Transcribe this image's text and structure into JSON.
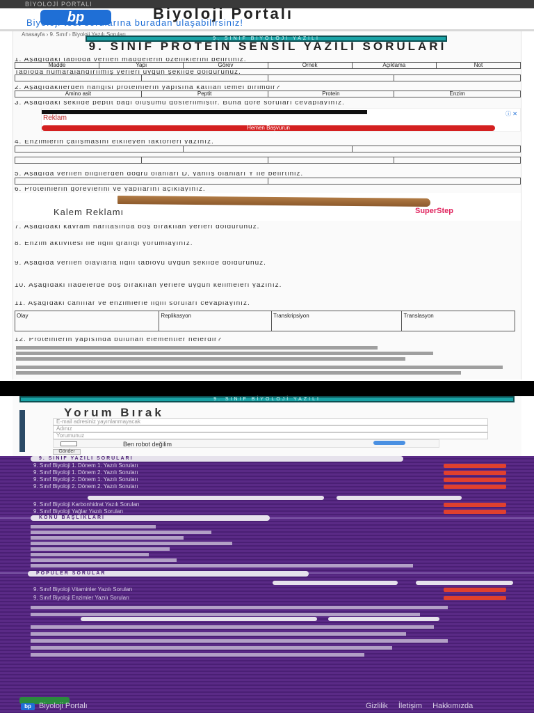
{
  "topbar": {
    "text": "BİYOLOJİ PORTALI"
  },
  "header": {
    "logo": "bp",
    "title": "Biyoloji Portalı",
    "subtitle": "Biyoloji test sorularına buradan ulaşabilirsiniz!"
  },
  "breadcrumb": "Anasayfa › 9. Sınıf › Biyoloji Yazılı Soruları",
  "bars": {
    "top": "9. SINIF BİYOLOJİ YAZILI",
    "comment": "9. SINIF BİYOLOJİ YAZILI"
  },
  "page": {
    "title": "9. SINIF PROTEİN SENSİL YAZILI SORULARI"
  },
  "questions": [
    "1. Aşağıdaki tabloda verilen maddelerin özelliklerini belirtiniz.",
    "Tabloda numaralandırılmış yerleri uygun şekilde doldurunuz.",
    "2. Aşağıdakilerden hangisi proteinlerin yapısına katılan temel birimdir?",
    "3. Aşağıdaki şekilde peptit bağı oluşumu gösterilmiştir. Buna göre soruları cevaplayınız.",
    "4. Enzimlerin çalışmasını etkileyen faktörleri yazınız.",
    "5. Aşağıda verilen bilgilerden doğru olanları D, yanlış olanları Y ile belirtiniz.",
    "6. Proteinlerin görevlerini ve yapılarını açıklayınız.",
    "7. Aşağıdaki kavram haritasında boş bırakılan yerleri doldurunuz.",
    "8. Enzim aktivitesi ile ilgili grafiği yorumlayınız.",
    "9. Aşağıda verilen olaylarla ilgili tabloyu uygun şekilde doldurunuz.",
    "10. Aşağıdaki ifadelerde boş bırakılan yerlere uygun kelimeleri yazınız.",
    "11. Aşağıdaki canlılar ve enzimlerle ilgili soruları cevaplayınız.",
    "12. Proteinlerin yapısında bulunan elementler nelerdir?"
  ],
  "table1": [
    "Madde",
    "Yapı",
    "Görev",
    "Örnek",
    "Açıklama",
    "Not"
  ],
  "table2": [
    "Amino asit",
    "Peptit",
    "Protein",
    "Enzim"
  ],
  "ad": {
    "text": "Reklam",
    "button": "Hemen Başvurun",
    "info": "ⓘ ✕"
  },
  "pen_ad": {
    "label": "Kalem Reklamı",
    "brand": "SuperStep"
  },
  "table5": [
    "Olay",
    "Replikasyon",
    "Transkripsiyon",
    "Translasyon"
  ],
  "comment": {
    "title": "Yorum Bırak",
    "email_placeholder": "E-mail adresiniz yayınlanmayacak",
    "name_placeholder": "Adınız",
    "comment_placeholder": "Yorumunuz",
    "captcha": "Ben robot değilim",
    "submit": "Gönder"
  },
  "sections": {
    "s1": "9. SINIF YAZILI SORULARI",
    "s2": "KONU BAŞLIKLARI",
    "s3": "POPÜLER SORULAR"
  },
  "purple_rows": [
    "9. Sınıf Biyoloji 1. Dönem 1. Yazılı Soruları",
    "9. Sınıf Biyoloji 1. Dönem 2. Yazılı Soruları",
    "9. Sınıf Biyoloji 2. Dönem 1. Yazılı Soruları",
    "9. Sınıf Biyoloji 2. Dönem 2. Yazılı Soruları",
    "9. Sınıf Biyoloji Karbonhidrat Yazılı Soruları",
    "9. Sınıf Biyoloji Yağlar Yazılı Soruları",
    "9. Sınıf Biyoloji Vitaminler Yazılı Soruları",
    "9. Sınıf Biyoloji Enzimler Yazılı Soruları"
  ],
  "footer": {
    "logo": "bp",
    "site": "Biyoloji Portalı",
    "links": "Gizlilik İletişim Hakkımızda"
  },
  "colors": {
    "accent": "#1f6fd6",
    "teal": "#1aa3a6",
    "purple": "#5a2a86",
    "red": "#e0402e"
  }
}
